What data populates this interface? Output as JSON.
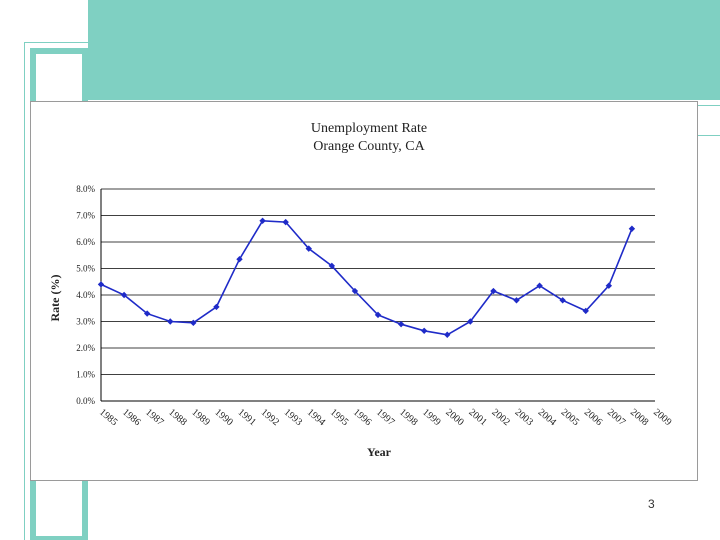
{
  "page": {
    "number": "3",
    "colors": {
      "accent": "#7fd0c2",
      "line": "#1f2bc8",
      "grid": "#000000"
    }
  },
  "chart_data": {
    "type": "line",
    "title": [
      "Unemployment Rate",
      "Orange County, CA"
    ],
    "xlabel": "Year",
    "ylabel": "Rate (%)",
    "categories": [
      "1985",
      "1986",
      "1987",
      "1988",
      "1989",
      "1990",
      "1991",
      "1992",
      "1993",
      "1994",
      "1995",
      "1996",
      "1997",
      "1998",
      "1999",
      "2000",
      "2001",
      "2002",
      "2003",
      "2004",
      "2005",
      "2006",
      "2007",
      "2008",
      "2009"
    ],
    "y_ticks": [
      "0.0%",
      "1.0%",
      "2.0%",
      "3.0%",
      "4.0%",
      "5.0%",
      "6.0%",
      "7.0%",
      "8.0%"
    ],
    "ylim": [
      0,
      8
    ],
    "grid": true,
    "series": [
      {
        "values": [
          4.4,
          4.0,
          3.3,
          3.0,
          2.95,
          3.55,
          5.35,
          6.8,
          6.75,
          5.75,
          5.1,
          4.15,
          3.25,
          2.9,
          2.65,
          2.5,
          3.0,
          4.15,
          3.8,
          4.35,
          3.8,
          3.4,
          4.35,
          6.5,
          null
        ]
      }
    ]
  }
}
